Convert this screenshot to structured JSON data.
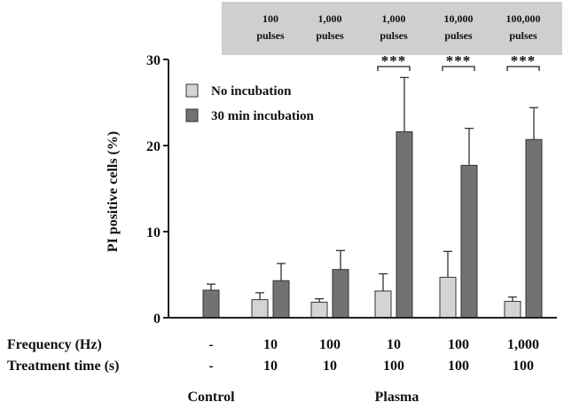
{
  "chart_data": {
    "type": "bar",
    "ylabel": "PI positive cells (%)",
    "ylim": [
      0,
      30
    ],
    "yticks": [
      0,
      10,
      20,
      30
    ],
    "grid": false,
    "legend_position": "top-left",
    "series": [
      {
        "name": "No incubation",
        "color": "#d4d4d4",
        "values": [
          null,
          2.1,
          1.8,
          3.1,
          4.7,
          1.9
        ],
        "errors": [
          null,
          0.8,
          0.4,
          2.0,
          3.0,
          0.5
        ]
      },
      {
        "name": "30 min incubation",
        "color": "#727272",
        "values": [
          3.2,
          4.3,
          5.6,
          21.6,
          17.7,
          20.7
        ],
        "errors": [
          0.7,
          2.0,
          2.2,
          6.3,
          4.3,
          3.7
        ]
      }
    ],
    "categories": [
      {
        "frequency": "-",
        "time": "-"
      },
      {
        "frequency": "10",
        "time": "10"
      },
      {
        "frequency": "100",
        "time": "10"
      },
      {
        "frequency": "10",
        "time": "100"
      },
      {
        "frequency": "100",
        "time": "100"
      },
      {
        "frequency": "1,000",
        "time": "100"
      }
    ],
    "row_labels": {
      "frequency": "Frequency (Hz)",
      "time": "Treatment time (s)"
    },
    "group_labels": [
      {
        "label": "Control",
        "categories": [
          0
        ]
      },
      {
        "label": "Plasma",
        "categories": [
          1,
          2,
          3,
          4,
          5
        ]
      }
    ],
    "pulse_headers": [
      {
        "line1": "100",
        "line2": "pulses",
        "category": 1
      },
      {
        "line1": "1,000",
        "line2": "pulses",
        "category": 2
      },
      {
        "line1": "1,000",
        "line2": "pulses",
        "category": 3
      },
      {
        "line1": "10,000",
        "line2": "pulses",
        "category": 4
      },
      {
        "line1": "100,000",
        "line2": "pulses",
        "category": 5
      }
    ],
    "significance": [
      {
        "category": 3,
        "label": "***"
      },
      {
        "category": 4,
        "label": "***"
      },
      {
        "category": 5,
        "label": "***"
      }
    ]
  }
}
